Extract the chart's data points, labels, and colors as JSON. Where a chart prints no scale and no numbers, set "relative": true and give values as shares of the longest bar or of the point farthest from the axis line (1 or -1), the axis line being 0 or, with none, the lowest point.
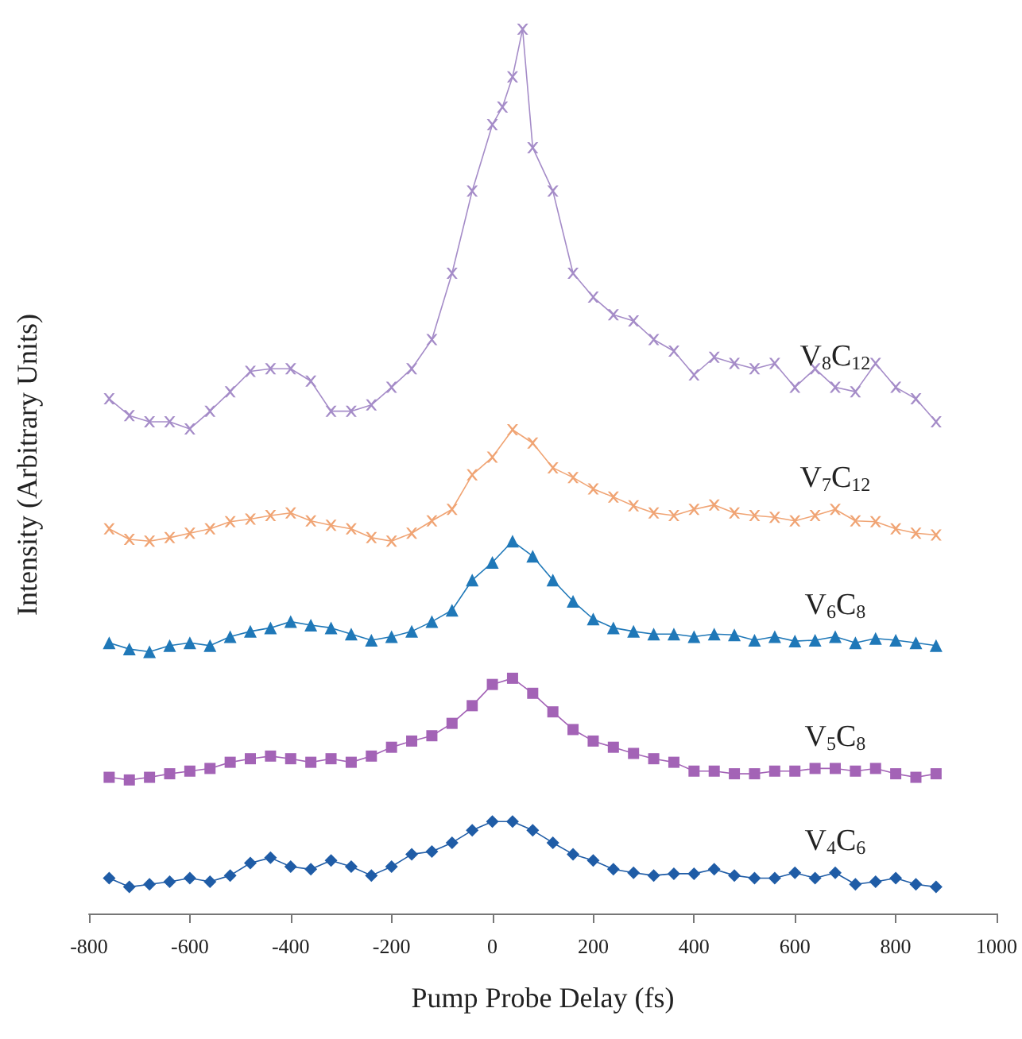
{
  "chart_data": {
    "type": "line",
    "relative": true,
    "xlabel": "Pump Probe Delay (fs)",
    "ylabel": "Intensity (Arbitrary Units)",
    "xlim": [
      -800,
      1000
    ],
    "xticks": [
      -800,
      -600,
      -400,
      -200,
      0,
      200,
      400,
      600,
      800,
      1000
    ],
    "grid": false,
    "legend": false,
    "line_style": "solid",
    "x": [
      -760,
      -720,
      -680,
      -640,
      -600,
      -560,
      -520,
      -480,
      -440,
      -400,
      -360,
      -320,
      -280,
      -240,
      -200,
      -160,
      -120,
      -80,
      -40,
      0,
      40,
      80,
      120,
      160,
      200,
      240,
      280,
      320,
      360,
      400,
      440,
      480,
      520,
      560,
      600,
      640,
      680,
      720,
      760,
      800,
      840,
      880
    ],
    "series": [
      {
        "name": "V$_{8}$C$_{12}$",
        "color": "#a58cc8",
        "marker": "cross",
        "x": [
          -760,
          -720,
          -680,
          -640,
          -600,
          -560,
          -520,
          -480,
          -440,
          -400,
          -360,
          -320,
          -280,
          -240,
          -200,
          -160,
          -120,
          -80,
          -40,
          0,
          20,
          40,
          60,
          80,
          120,
          160,
          200,
          240,
          280,
          320,
          360,
          400,
          440,
          480,
          520,
          560,
          600,
          640,
          680,
          720,
          760,
          800,
          840,
          880
        ],
        "values": [
          0.582,
          0.563,
          0.556,
          0.556,
          0.548,
          0.568,
          0.59,
          0.613,
          0.616,
          0.616,
          0.602,
          0.568,
          0.568,
          0.575,
          0.595,
          0.616,
          0.649,
          0.724,
          0.817,
          0.892,
          0.912,
          0.946,
          1,
          0.866,
          0.817,
          0.724,
          0.697,
          0.677,
          0.67,
          0.649,
          0.636,
          0.609,
          0.629,
          0.622,
          0.616,
          0.622,
          0.595,
          0.616,
          0.595,
          0.59,
          0.622,
          0.595,
          0.582,
          0.556
        ]
      },
      {
        "name": "V$_{7}$C$_{12}$",
        "color": "#f0a474",
        "marker": "cross",
        "values": [
          0.435,
          0.423,
          0.421,
          0.425,
          0.43,
          0.435,
          0.443,
          0.446,
          0.45,
          0.453,
          0.444,
          0.439,
          0.435,
          0.425,
          0.421,
          0.43,
          0.444,
          0.457,
          0.496,
          0.516,
          0.547,
          0.532,
          0.504,
          0.493,
          0.48,
          0.471,
          0.461,
          0.453,
          0.45,
          0.457,
          0.462,
          0.453,
          0.45,
          0.448,
          0.444,
          0.45,
          0.457,
          0.444,
          0.443,
          0.435,
          0.43,
          0.428
        ]
      },
      {
        "name": "V$_{6}$C$_{8}$",
        "color": "#1f78b8",
        "marker": "triangle",
        "values": [
          0.306,
          0.299,
          0.296,
          0.303,
          0.306,
          0.303,
          0.313,
          0.319,
          0.323,
          0.33,
          0.326,
          0.323,
          0.316,
          0.309,
          0.313,
          0.319,
          0.33,
          0.343,
          0.377,
          0.397,
          0.421,
          0.404,
          0.377,
          0.353,
          0.333,
          0.323,
          0.319,
          0.316,
          0.316,
          0.313,
          0.316,
          0.315,
          0.309,
          0.313,
          0.308,
          0.309,
          0.313,
          0.306,
          0.311,
          0.309,
          0.306,
          0.303
        ]
      },
      {
        "name": "V$_{5}$C$_{8}$",
        "color": "#a363b6",
        "marker": "square",
        "values": [
          0.154,
          0.151,
          0.154,
          0.158,
          0.161,
          0.164,
          0.171,
          0.175,
          0.178,
          0.175,
          0.171,
          0.175,
          0.171,
          0.178,
          0.188,
          0.195,
          0.201,
          0.215,
          0.235,
          0.259,
          0.266,
          0.249,
          0.228,
          0.208,
          0.195,
          0.188,
          0.181,
          0.175,
          0.171,
          0.161,
          0.161,
          0.158,
          0.158,
          0.161,
          0.161,
          0.164,
          0.164,
          0.161,
          0.164,
          0.158,
          0.154,
          0.158
        ]
      },
      {
        "name": "V$_{4}$C$_{6}$",
        "color": "#1f5ca6",
        "marker": "diamond",
        "values": [
          0.04,
          0.03,
          0.033,
          0.036,
          0.04,
          0.036,
          0.043,
          0.057,
          0.063,
          0.053,
          0.05,
          0.06,
          0.053,
          0.043,
          0.053,
          0.067,
          0.07,
          0.08,
          0.094,
          0.104,
          0.104,
          0.094,
          0.08,
          0.067,
          0.06,
          0.05,
          0.046,
          0.043,
          0.045,
          0.045,
          0.05,
          0.043,
          0.04,
          0.04,
          0.046,
          0.04,
          0.046,
          0.033,
          0.036,
          0.04,
          0.033,
          0.03
        ]
      }
    ]
  }
}
